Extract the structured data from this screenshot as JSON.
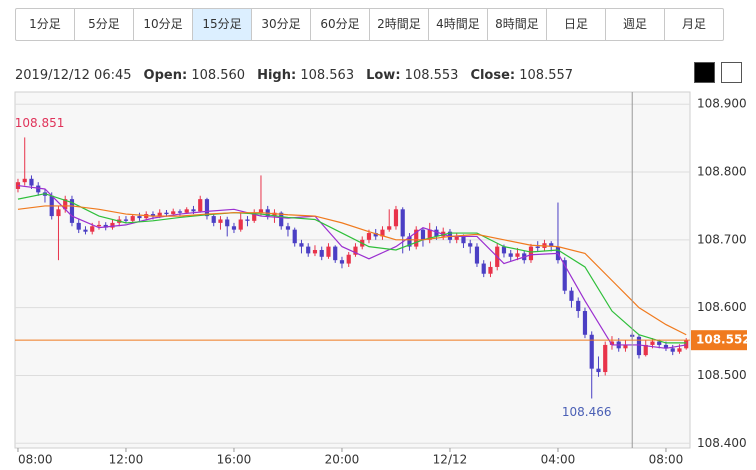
{
  "tabs": [
    "1分足",
    "5分足",
    "10分足",
    "15分足",
    "30分足",
    "60分足",
    "2時間足",
    "4時間足",
    "8時間足",
    "日足",
    "週足",
    "月足"
  ],
  "selected_tab": 3,
  "header": {
    "time": "2019/12/12 06:45",
    "fields": [
      {
        "label": "Open:",
        "value": "108.560"
      },
      {
        "label": "High:",
        "value": "108.563"
      },
      {
        "label": "Low:",
        "value": "108.553"
      },
      {
        "label": "Close:",
        "value": "108.557"
      }
    ]
  },
  "chart_data": {
    "type": "candlestick",
    "up_color": "#e8334a",
    "down_color": "#4b3fc4",
    "open": [
      108.775,
      108.785,
      108.79,
      108.78,
      108.77,
      108.765,
      108.735,
      108.745,
      108.76,
      108.725,
      108.715,
      108.712,
      108.72,
      108.722,
      108.718,
      108.725,
      108.73,
      108.728,
      108.735,
      108.732,
      108.738,
      108.735,
      108.74,
      108.738,
      108.742,
      108.74,
      108.745,
      108.742,
      108.76,
      108.735,
      108.725,
      108.73,
      108.72,
      108.715,
      108.73,
      108.728,
      108.74,
      108.745,
      108.735,
      108.74,
      108.72,
      108.715,
      108.695,
      108.69,
      108.68,
      108.685,
      108.675,
      108.69,
      108.67,
      108.665,
      108.678,
      108.69,
      108.7,
      108.71,
      108.705,
      108.715,
      108.72,
      108.745,
      108.705,
      108.69,
      108.715,
      108.7,
      108.715,
      108.705,
      108.712,
      108.7,
      108.705,
      108.695,
      108.69,
      108.665,
      108.65,
      108.66,
      108.69,
      108.68,
      108.675,
      108.68,
      108.67,
      108.69,
      108.688,
      108.695,
      108.69,
      108.67,
      108.625,
      108.61,
      108.595,
      108.56,
      108.51,
      108.505,
      108.545,
      108.55,
      108.54,
      108.56,
      108.557,
      108.53,
      108.545,
      108.55,
      108.545,
      108.54,
      108.535,
      108.54
    ],
    "high": [
      108.79,
      108.851,
      108.795,
      108.785,
      108.775,
      108.77,
      108.75,
      108.765,
      108.765,
      108.73,
      108.72,
      108.725,
      108.728,
      108.726,
      108.73,
      108.735,
      108.735,
      108.738,
      108.74,
      108.742,
      108.742,
      108.745,
      108.744,
      108.746,
      108.745,
      108.748,
      108.75,
      108.765,
      108.762,
      108.738,
      108.735,
      108.734,
      108.725,
      108.74,
      108.735,
      108.745,
      108.795,
      108.75,
      108.745,
      108.742,
      108.725,
      108.718,
      108.7,
      108.695,
      108.692,
      108.69,
      108.695,
      108.692,
      108.675,
      108.682,
      108.695,
      108.705,
      108.715,
      108.716,
      108.72,
      108.745,
      108.75,
      108.748,
      108.71,
      108.72,
      108.718,
      108.725,
      108.72,
      108.718,
      108.716,
      108.71,
      108.708,
      108.7,
      108.695,
      108.67,
      108.668,
      108.695,
      108.693,
      108.685,
      108.688,
      108.684,
      108.694,
      108.698,
      108.7,
      108.698,
      108.755,
      108.674,
      108.63,
      108.615,
      108.6,
      108.565,
      108.528,
      108.55,
      108.558,
      108.555,
      108.552,
      108.563,
      108.56,
      108.552,
      108.555,
      108.553,
      108.55,
      108.545,
      108.546,
      108.555
    ],
    "low": [
      108.77,
      108.78,
      108.775,
      108.765,
      108.755,
      108.73,
      108.67,
      108.74,
      108.72,
      108.71,
      108.708,
      108.708,
      108.715,
      108.714,
      108.715,
      108.72,
      108.724,
      108.725,
      108.728,
      108.73,
      108.73,
      108.732,
      108.734,
      108.735,
      108.736,
      108.738,
      108.738,
      108.74,
      108.73,
      108.72,
      108.715,
      108.705,
      108.71,
      108.712,
      108.72,
      108.725,
      108.735,
      108.73,
      108.725,
      108.715,
      108.705,
      108.69,
      108.68,
      108.675,
      108.676,
      108.67,
      108.672,
      108.666,
      108.658,
      108.66,
      108.675,
      108.686,
      108.695,
      108.7,
      108.7,
      108.712,
      108.715,
      108.68,
      108.684,
      108.686,
      108.69,
      108.695,
      108.7,
      108.7,
      108.695,
      108.695,
      108.688,
      108.68,
      108.66,
      108.645,
      108.645,
      108.655,
      108.674,
      108.668,
      108.67,
      108.665,
      108.666,
      108.682,
      108.684,
      108.683,
      108.665,
      108.62,
      108.6,
      108.585,
      108.555,
      108.466,
      108.498,
      108.5,
      108.538,
      108.535,
      108.535,
      108.553,
      108.525,
      108.528,
      108.54,
      108.54,
      108.536,
      108.53,
      108.532,
      108.538
    ],
    "close": [
      108.785,
      108.79,
      108.78,
      108.77,
      108.765,
      108.735,
      108.745,
      108.76,
      108.725,
      108.715,
      108.712,
      108.72,
      108.722,
      108.718,
      108.725,
      108.73,
      108.728,
      108.735,
      108.732,
      108.738,
      108.735,
      108.74,
      108.738,
      108.742,
      108.74,
      108.745,
      108.742,
      108.76,
      108.735,
      108.725,
      108.73,
      108.72,
      108.715,
      108.73,
      108.728,
      108.74,
      108.745,
      108.735,
      108.74,
      108.72,
      108.715,
      108.695,
      108.69,
      108.68,
      108.685,
      108.675,
      108.69,
      108.67,
      108.665,
      108.678,
      108.69,
      108.7,
      108.71,
      108.705,
      108.715,
      108.72,
      108.745,
      108.705,
      108.69,
      108.715,
      108.7,
      108.715,
      108.705,
      108.712,
      108.7,
      108.705,
      108.695,
      108.69,
      108.665,
      108.65,
      108.66,
      108.69,
      108.68,
      108.675,
      108.68,
      108.67,
      108.69,
      108.688,
      108.695,
      108.69,
      108.67,
      108.625,
      108.61,
      108.595,
      108.56,
      108.51,
      108.505,
      108.545,
      108.55,
      108.54,
      108.545,
      108.557,
      108.53,
      108.545,
      108.55,
      108.545,
      108.54,
      108.535,
      108.54,
      108.552
    ],
    "overlay_x": [
      0,
      4,
      8,
      12,
      16,
      20,
      24,
      28,
      32,
      36,
      40,
      44,
      48,
      52,
      56,
      60,
      64,
      68,
      72,
      76,
      80,
      84,
      88,
      92,
      96,
      99
    ],
    "overlays": [
      {
        "color": "#9b2fd0",
        "values": [
          108.78,
          108.775,
          108.735,
          108.718,
          108.722,
          108.732,
          108.738,
          108.742,
          108.745,
          108.735,
          108.732,
          108.735,
          108.69,
          108.672,
          108.69,
          108.718,
          108.705,
          108.705,
          108.665,
          108.678,
          108.68,
          108.61,
          108.545,
          108.545,
          108.54,
          108.545
        ]
      },
      {
        "color": "#2fbf3a",
        "values": [
          108.76,
          108.768,
          108.755,
          108.735,
          108.725,
          108.728,
          108.733,
          108.737,
          108.74,
          108.738,
          108.733,
          108.73,
          108.71,
          108.69,
          108.685,
          108.7,
          108.71,
          108.71,
          108.69,
          108.682,
          108.685,
          108.66,
          108.595,
          108.56,
          108.548,
          108.548
        ]
      },
      {
        "color": "#f07a1e",
        "values": [
          108.745,
          108.75,
          108.75,
          108.745,
          108.738,
          108.735,
          108.735,
          108.738,
          108.74,
          108.74,
          108.737,
          108.735,
          108.725,
          108.712,
          108.7,
          108.7,
          108.705,
          108.708,
          108.7,
          108.692,
          108.69,
          108.68,
          108.64,
          108.6,
          108.575,
          108.56
        ]
      }
    ],
    "xlim": [
      -0.44,
      99.56
    ],
    "xticks": [
      {
        "value": 0,
        "label": "08:00"
      },
      {
        "value": 16,
        "label": "12:00"
      },
      {
        "value": 32,
        "label": "16:00"
      },
      {
        "value": 48,
        "label": "20:00"
      },
      {
        "value": 64,
        "label": "12/12"
      },
      {
        "value": 80,
        "label": "04:00"
      },
      {
        "value": 96,
        "label": "08:00"
      }
    ],
    "ylim": [
      108.393,
      108.918
    ],
    "yticks": [
      {
        "value": 108.4,
        "label": "108.400"
      },
      {
        "value": 108.5,
        "label": "108.500"
      },
      {
        "value": 108.6,
        "label": "108.600"
      },
      {
        "value": 108.7,
        "label": "108.700"
      },
      {
        "value": 108.8,
        "label": "108.800"
      },
      {
        "value": 108.9,
        "label": "108.900"
      }
    ],
    "grid": true,
    "current_price": 108.552,
    "current_color": "#f07a1e",
    "crosshair_x": 91,
    "annotations": [
      {
        "label": "108.851",
        "value": 108.851,
        "x": 1,
        "color": "#e0335a",
        "position": "above"
      },
      {
        "label": "108.466",
        "value": 108.466,
        "x": 85,
        "color": "#4a5fb5",
        "position": "below"
      }
    ]
  }
}
